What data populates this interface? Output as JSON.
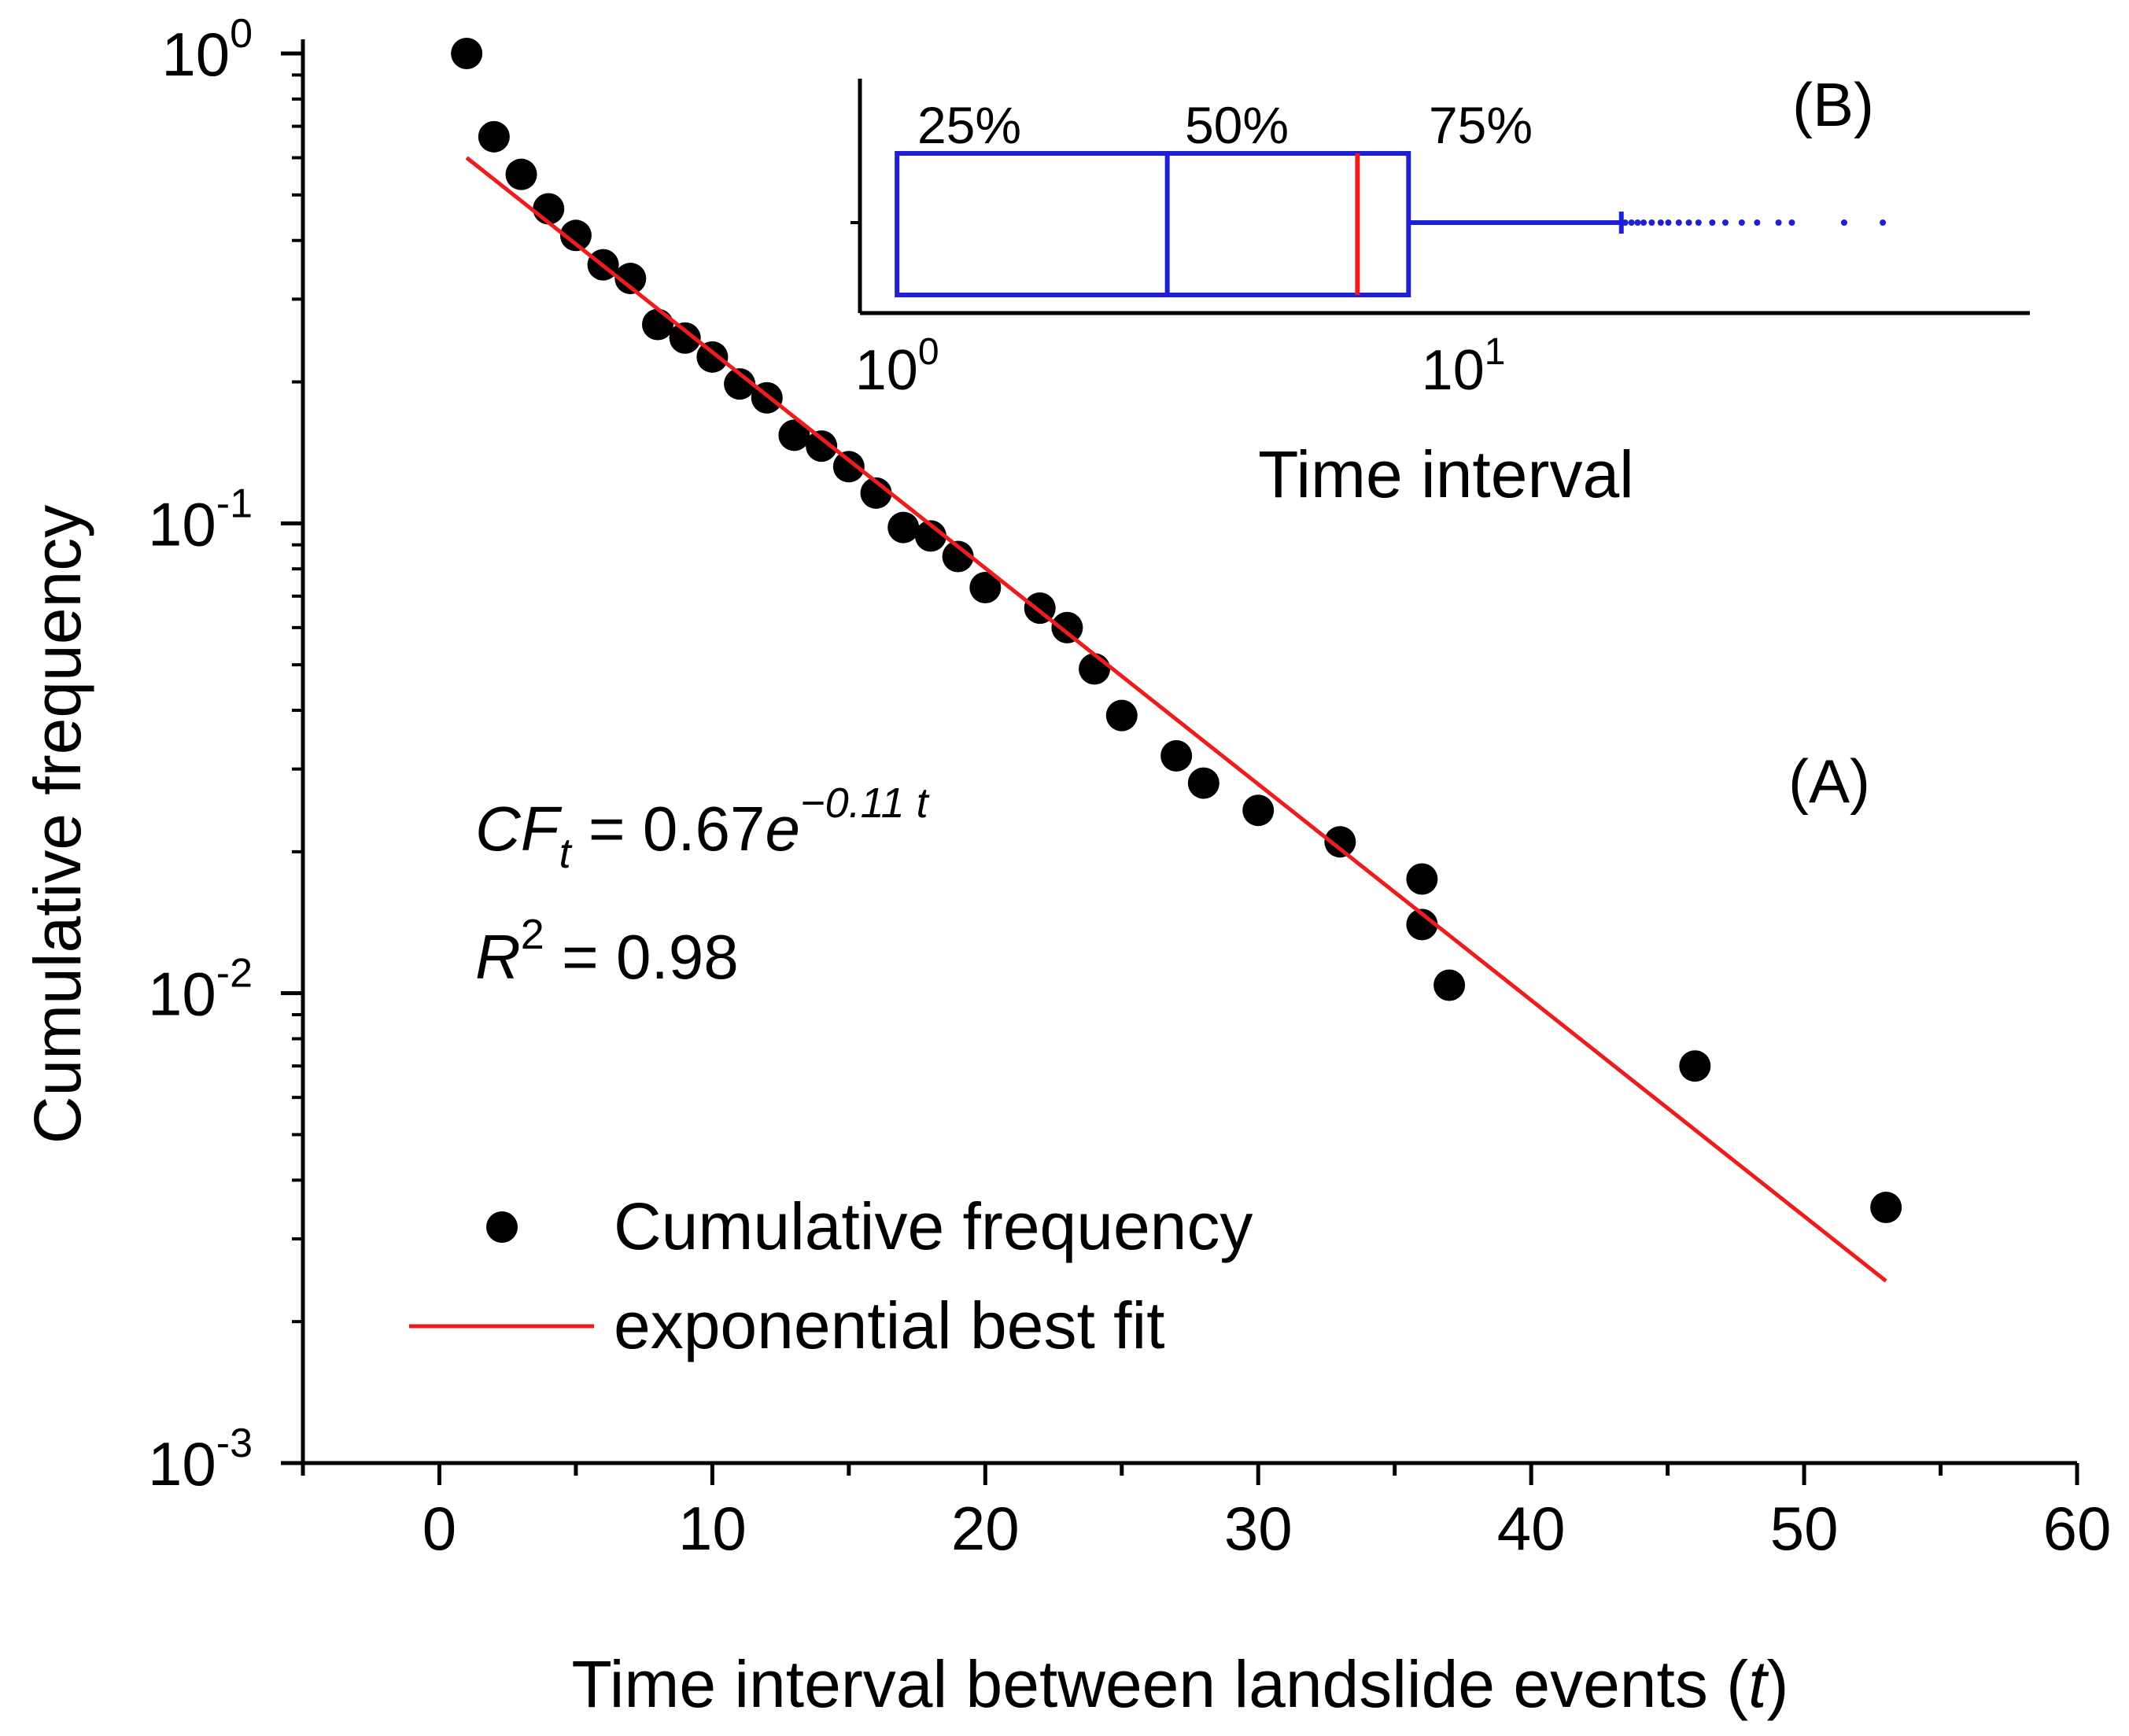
{
  "chart_data": [
    {
      "type": "scatter",
      "panel_label": "(A)",
      "title": "",
      "xlabel": "Time interval between landslide events (",
      "xlabel_var": "t",
      "xlabel_end": ")",
      "ylabel": "Cumulative frequency",
      "xlim": [
        -5,
        60
      ],
      "ylim": [
        0.001,
        1
      ],
      "yscale": "log",
      "x_ticks": [
        0,
        10,
        20,
        30,
        40,
        50,
        60
      ],
      "x_tick_labels": [
        "0",
        "10",
        "20",
        "30",
        "40",
        "50",
        "60"
      ],
      "y_ticks": [
        1,
        0.1,
        0.01,
        0.001
      ],
      "y_tick_bases": [
        "10",
        "10",
        "10",
        "10"
      ],
      "y_tick_exponents": [
        "0",
        "-1",
        "-2",
        "-3"
      ],
      "legend_position": "bottom-left",
      "series": [
        {
          "name": "Cumulative frequency",
          "kind": "points",
          "color": "#000000",
          "x": [
            1,
            2,
            3,
            4,
            5,
            6,
            7,
            8,
            9,
            10,
            11,
            12,
            13,
            14,
            15,
            16,
            17,
            18,
            19,
            20,
            22,
            23,
            24,
            25,
            27,
            28,
            30,
            33,
            36,
            36,
            37,
            46,
            53
          ],
          "y": [
            1.0,
            0.665,
            0.553,
            0.467,
            0.41,
            0.355,
            0.332,
            0.265,
            0.248,
            0.226,
            0.198,
            0.185,
            0.154,
            0.146,
            0.132,
            0.116,
            0.098,
            0.094,
            0.085,
            0.073,
            0.066,
            0.06,
            0.049,
            0.039,
            0.032,
            0.028,
            0.0245,
            0.021,
            0.0175,
            0.014,
            0.0104,
            0.007,
            0.0035
          ]
        },
        {
          "name": "exponential best fit",
          "kind": "line",
          "color": "#ee1c1c",
          "x": [
            1,
            53
          ],
          "y": [
            0.6,
            0.00244
          ]
        }
      ],
      "annotations": {
        "equation_lhs_main": "CF",
        "equation_lhs_sub": "t",
        "equation_mid": " = 0.67",
        "equation_base": "e",
        "equation_exp": "−0.11 t",
        "r2_main": "R",
        "r2_sup": "2",
        "r2_value": " = 0.98"
      }
    },
    {
      "type": "box",
      "panel_label": "(B)",
      "xlabel": "Time interval",
      "xscale": "log",
      "xlim": [
        0.86,
        100
      ],
      "x_ticks": [
        1,
        10
      ],
      "x_tick_bases": [
        "10",
        "10"
      ],
      "x_tick_exponents": [
        "0",
        "1"
      ],
      "box": {
        "q1": 1,
        "median": 3,
        "q3": 8,
        "mean": 6.5,
        "whisker_low": 1,
        "whisker_high": 19
      },
      "box_color": "#1f1fd6",
      "mean_color": "#ee1c1c",
      "outliers": [
        19.3,
        19.8,
        20.3,
        20.8,
        21.5,
        22.3,
        23,
        24,
        25,
        26,
        27.5,
        29,
        31,
        33,
        36,
        38,
        47,
        55
      ],
      "percentile_labels": [
        "25%",
        "50%",
        "75%"
      ]
    }
  ]
}
